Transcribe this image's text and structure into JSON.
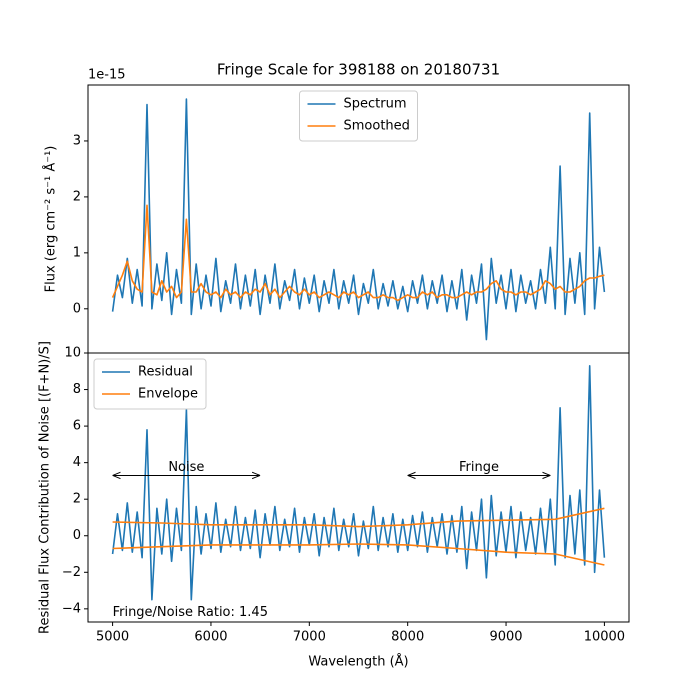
{
  "chart_data": [
    {
      "type": "line",
      "title": "Fringe Scale for 398188 on 20180731",
      "offset_label": "1e-15",
      "ylabel": "Flux (erg cm⁻² s⁻¹ Å⁻¹)",
      "legend": "upper center",
      "xlim": [
        4750,
        10250
      ],
      "ylim": [
        -0.79,
        4.0
      ],
      "yticks": [
        0,
        1,
        2,
        3
      ],
      "series": [
        {
          "name": "Spectrum",
          "color": "#1f77b4",
          "x": [
            5000,
            5050,
            5100,
            5150,
            5200,
            5250,
            5300,
            5350,
            5400,
            5450,
            5500,
            5550,
            5600,
            5650,
            5700,
            5750,
            5800,
            5850,
            5900,
            5950,
            6000,
            6050,
            6100,
            6150,
            6200,
            6250,
            6300,
            6350,
            6400,
            6450,
            6500,
            6550,
            6600,
            6650,
            6700,
            6750,
            6800,
            6850,
            6900,
            6950,
            7000,
            7050,
            7100,
            7150,
            7200,
            7250,
            7300,
            7350,
            7400,
            7450,
            7500,
            7550,
            7600,
            7650,
            7700,
            7750,
            7800,
            7850,
            7900,
            7950,
            8000,
            8050,
            8100,
            8150,
            8200,
            8250,
            8300,
            8350,
            8400,
            8450,
            8500,
            8550,
            8600,
            8650,
            8700,
            8750,
            8800,
            8850,
            8900,
            8950,
            9000,
            9050,
            9100,
            9150,
            9200,
            9250,
            9300,
            9350,
            9400,
            9450,
            9500,
            9550,
            9600,
            9650,
            9700,
            9750,
            9800,
            9850,
            9900,
            9950,
            10000
          ],
          "values": [
            -0.05,
            0.6,
            0.2,
            0.9,
            0.1,
            0.7,
            0.05,
            3.65,
            0.0,
            0.8,
            0.15,
            1.0,
            -0.1,
            0.7,
            0.1,
            3.75,
            -0.1,
            0.8,
            0.0,
            0.6,
            0.05,
            0.9,
            -0.05,
            0.5,
            0.1,
            0.8,
            0.0,
            0.6,
            0.05,
            0.7,
            -0.1,
            0.6,
            0.1,
            0.8,
            0.0,
            0.5,
            0.15,
            0.7,
            0.0,
            0.55,
            0.1,
            0.6,
            -0.05,
            0.5,
            0.1,
            0.7,
            0.0,
            0.5,
            0.1,
            0.6,
            -0.1,
            0.45,
            0.1,
            0.7,
            0.0,
            0.45,
            0.05,
            0.5,
            0.0,
            0.4,
            -0.05,
            0.5,
            0.1,
            0.6,
            0.0,
            0.5,
            0.1,
            0.6,
            -0.05,
            0.5,
            0.0,
            0.7,
            -0.2,
            0.6,
            0.1,
            0.8,
            -0.55,
            0.9,
            0.1,
            0.6,
            0.0,
            0.7,
            -0.05,
            0.6,
            0.1,
            0.5,
            0.0,
            0.7,
            0.1,
            1.1,
            0.0,
            2.55,
            -0.1,
            0.9,
            0.1,
            1.0,
            -0.1,
            3.5,
            0.0,
            1.1,
            0.3
          ]
        },
        {
          "name": "Smoothed",
          "color": "#ff7f0e",
          "x": [
            5000,
            5050,
            5100,
            5150,
            5200,
            5250,
            5300,
            5350,
            5400,
            5450,
            5500,
            5550,
            5600,
            5650,
            5700,
            5750,
            5800,
            5850,
            5900,
            5950,
            6000,
            6050,
            6100,
            6150,
            6200,
            6250,
            6300,
            6350,
            6400,
            6450,
            6500,
            6550,
            6600,
            6650,
            6700,
            6750,
            6800,
            6850,
            6900,
            6950,
            7000,
            7050,
            7100,
            7150,
            7200,
            7250,
            7300,
            7350,
            7400,
            7450,
            7500,
            7550,
            7600,
            7650,
            7700,
            7750,
            7800,
            7850,
            7900,
            7950,
            8000,
            8050,
            8100,
            8150,
            8200,
            8250,
            8300,
            8350,
            8400,
            8450,
            8500,
            8550,
            8600,
            8650,
            8700,
            8750,
            8800,
            8850,
            8900,
            8950,
            9000,
            9050,
            9100,
            9150,
            9200,
            9250,
            9300,
            9350,
            9400,
            9450,
            9500,
            9550,
            9600,
            9650,
            9700,
            9750,
            9800,
            9850,
            9900,
            9950,
            10000
          ],
          "values": [
            0.2,
            0.4,
            0.6,
            0.85,
            0.5,
            0.35,
            0.3,
            1.85,
            0.3,
            0.25,
            0.5,
            0.3,
            0.4,
            0.2,
            0.3,
            1.6,
            0.3,
            0.3,
            0.45,
            0.3,
            0.25,
            0.3,
            0.2,
            0.35,
            0.25,
            0.3,
            0.2,
            0.3,
            0.25,
            0.35,
            0.3,
            0.45,
            0.25,
            0.35,
            0.2,
            0.3,
            0.4,
            0.3,
            0.25,
            0.35,
            0.25,
            0.3,
            0.2,
            0.25,
            0.3,
            0.25,
            0.2,
            0.3,
            0.25,
            0.3,
            0.2,
            0.25,
            0.3,
            0.2,
            0.2,
            0.25,
            0.2,
            0.2,
            0.15,
            0.2,
            0.25,
            0.2,
            0.2,
            0.3,
            0.25,
            0.3,
            0.2,
            0.25,
            0.25,
            0.2,
            0.2,
            0.25,
            0.3,
            0.25,
            0.3,
            0.3,
            0.35,
            0.45,
            0.5,
            0.35,
            0.3,
            0.3,
            0.25,
            0.3,
            0.3,
            0.25,
            0.3,
            0.35,
            0.5,
            0.45,
            0.35,
            0.4,
            0.3,
            0.3,
            0.35,
            0.4,
            0.5,
            0.55,
            0.55,
            0.58,
            0.6
          ]
        }
      ]
    },
    {
      "type": "line",
      "ylabel": "Residual Flux Contribution of Noise [(F+N)/S]",
      "xlabel": "Wavelength (Å)",
      "legend": "upper left",
      "xlim": [
        4750,
        10250
      ],
      "ylim": [
        -4.72,
        10.0
      ],
      "xticks": [
        5000,
        6000,
        7000,
        8000,
        9000,
        10000
      ],
      "yticks": [
        {
          "value": -4,
          "label": "−4"
        },
        {
          "value": -2,
          "label": "−2"
        },
        0,
        2,
        4,
        6,
        8,
        10
      ],
      "series": [
        {
          "name": "Residual",
          "color": "#1f77b4",
          "x": [
            5000,
            5050,
            5100,
            5150,
            5200,
            5250,
            5300,
            5350,
            5400,
            5450,
            5500,
            5550,
            5600,
            5650,
            5700,
            5750,
            5800,
            5850,
            5900,
            5950,
            6000,
            6050,
            6100,
            6150,
            6200,
            6250,
            6300,
            6350,
            6400,
            6450,
            6500,
            6550,
            6600,
            6650,
            6700,
            6750,
            6800,
            6850,
            6900,
            6950,
            7000,
            7050,
            7100,
            7150,
            7200,
            7250,
            7300,
            7350,
            7400,
            7450,
            7500,
            7550,
            7600,
            7650,
            7700,
            7750,
            7800,
            7850,
            7900,
            7950,
            8000,
            8050,
            8100,
            8150,
            8200,
            8250,
            8300,
            8350,
            8400,
            8450,
            8500,
            8550,
            8600,
            8650,
            8700,
            8750,
            8800,
            8850,
            8900,
            8950,
            9000,
            9050,
            9100,
            9150,
            9200,
            9250,
            9300,
            9350,
            9400,
            9450,
            9500,
            9550,
            9600,
            9650,
            9700,
            9750,
            9800,
            9850,
            9900,
            9950,
            10000
          ],
          "values": [
            -1.0,
            1.2,
            -0.8,
            1.8,
            -0.9,
            1.3,
            -1.2,
            5.8,
            -3.5,
            1.5,
            -1.0,
            2.0,
            -1.4,
            1.5,
            -0.8,
            6.9,
            -3.5,
            1.6,
            -1.0,
            1.2,
            -0.7,
            1.8,
            -0.9,
            0.9,
            -0.6,
            1.6,
            -0.8,
            1.0,
            -0.7,
            1.4,
            -1.2,
            1.2,
            -0.5,
            1.6,
            -0.8,
            0.9,
            -0.6,
            1.5,
            -0.9,
            1.0,
            -0.5,
            1.2,
            -1.1,
            1.0,
            -0.6,
            1.5,
            -0.8,
            0.9,
            -0.6,
            1.2,
            -1.1,
            0.8,
            -0.7,
            1.6,
            -0.8,
            1.0,
            -0.6,
            1.2,
            -0.9,
            0.9,
            -0.8,
            1.1,
            -0.6,
            1.3,
            -0.9,
            1.0,
            -0.6,
            1.2,
            -1.0,
            1.1,
            -0.9,
            1.6,
            -1.8,
            1.3,
            -0.8,
            2.0,
            -2.3,
            2.2,
            -1.1,
            1.3,
            -0.9,
            1.6,
            -1.2,
            1.3,
            -0.8,
            1.0,
            -1.0,
            1.5,
            -0.9,
            2.0,
            -1.6,
            7.0,
            -1.2,
            2.2,
            -1.0,
            2.5,
            -1.6,
            9.3,
            -2.0,
            2.5,
            -1.2
          ]
        },
        {
          "name": "Envelope",
          "color": "#ff7f0e",
          "x": [
            5000,
            5500,
            6000,
            6500,
            7000,
            7500,
            8000,
            8500,
            9000,
            9500,
            10000
          ],
          "values": [
            0.75,
            0.7,
            0.6,
            0.6,
            0.6,
            0.5,
            0.6,
            0.8,
            0.85,
            0.9,
            1.5
          ],
          "lower": [
            -0.7,
            -0.6,
            -0.5,
            -0.5,
            -0.5,
            -0.45,
            -0.5,
            -0.7,
            -0.9,
            -1.0,
            -1.6
          ]
        }
      ],
      "annotations": [
        {
          "text": "Noise",
          "x": [
            5000,
            6500
          ],
          "y": 3.3
        },
        {
          "text": "Fringe",
          "x": [
            8000,
            9450
          ],
          "y": 3.3
        }
      ],
      "note": {
        "text": "Fringe/Noise Ratio: 1.45",
        "x": 5000,
        "y": -4.2
      }
    }
  ]
}
